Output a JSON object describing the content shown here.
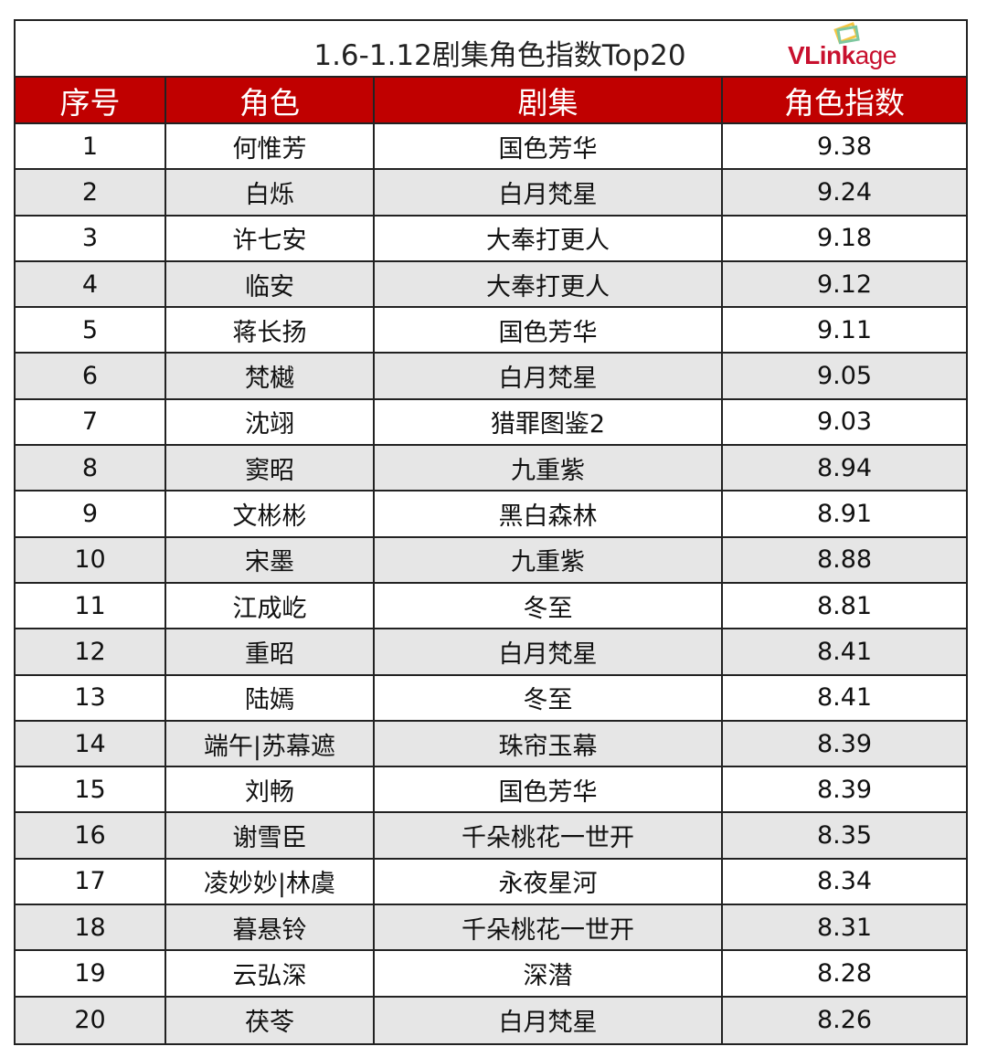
{
  "title": "1.6-1.12剧集角色指数Top20",
  "logo": {
    "text_bold": "VLink",
    "text_light": "age",
    "color": "#c8102e"
  },
  "header_color": "#c00000",
  "columns": [
    "序号",
    "角色",
    "剧集",
    "角色指数"
  ],
  "rows": [
    [
      "1",
      "何惟芳",
      "国色芳华",
      "9.38"
    ],
    [
      "2",
      "白烁",
      "白月梵星",
      "9.24"
    ],
    [
      "3",
      "许七安",
      "大奉打更人",
      "9.18"
    ],
    [
      "4",
      "临安",
      "大奉打更人",
      "9.12"
    ],
    [
      "5",
      "蒋长扬",
      "国色芳华",
      "9.11"
    ],
    [
      "6",
      "梵樾",
      "白月梵星",
      "9.05"
    ],
    [
      "7",
      "沈翊",
      "猎罪图鉴2",
      "9.03"
    ],
    [
      "8",
      "窦昭",
      "九重紫",
      "8.94"
    ],
    [
      "9",
      "文彬彬",
      "黑白森林",
      "8.91"
    ],
    [
      "10",
      "宋墨",
      "九重紫",
      "8.88"
    ],
    [
      "11",
      "江成屹",
      "冬至",
      "8.81"
    ],
    [
      "12",
      "重昭",
      "白月梵星",
      "8.41"
    ],
    [
      "13",
      "陆嫣",
      "冬至",
      "8.41"
    ],
    [
      "14",
      "端午|苏幕遮",
      "珠帘玉幕",
      "8.39"
    ],
    [
      "15",
      "刘畅",
      "国色芳华",
      "8.39"
    ],
    [
      "16",
      "谢雪臣",
      "千朵桃花一世开",
      "8.35"
    ],
    [
      "17",
      "凌妙妙|林虞",
      "永夜星河",
      "8.34"
    ],
    [
      "18",
      "暮悬铃",
      "千朵桃花一世开",
      "8.31"
    ],
    [
      "19",
      "云弘深",
      "深潜",
      "8.28"
    ],
    [
      "20",
      "茯苓",
      "白月梵星",
      "8.26"
    ]
  ]
}
